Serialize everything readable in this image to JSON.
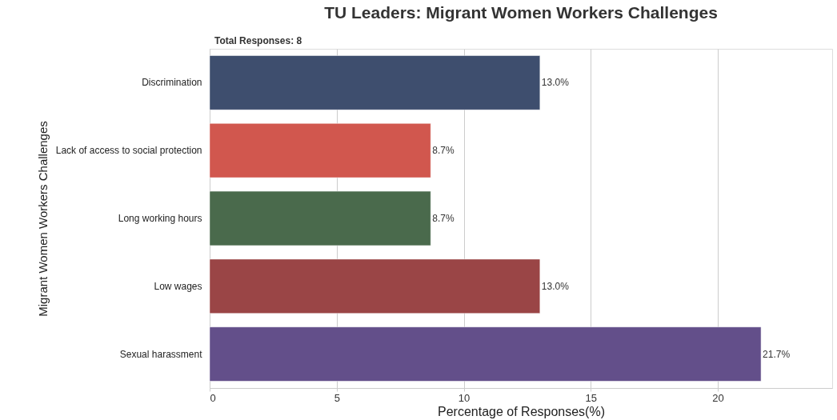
{
  "chart_data": {
    "type": "bar",
    "orientation": "horizontal",
    "title": "TU Leaders: Migrant Women Workers Challenges",
    "xlabel": "Percentage of Responses(%)",
    "ylabel": "Migrant Women Workers Challenges",
    "annotations": [
      "Total Responses: 8"
    ],
    "categories": [
      "Discrimination",
      "Lack of access to social protection",
      "Long working hours",
      "Low wages",
      "Sexual harassment"
    ],
    "values": [
      13.0,
      8.7,
      8.7,
      13.0,
      21.7
    ],
    "value_labels": [
      "13.0%",
      "8.7%",
      "8.7%",
      "13.0%",
      "21.7%"
    ],
    "colors": [
      "#3e4e6e",
      "#d1574e",
      "#4a6a4c",
      "#9a4546",
      "#634f8a"
    ],
    "xlim": [
      0,
      24.5
    ],
    "xticks": [
      0,
      5,
      10,
      15,
      20
    ],
    "grid": "x"
  }
}
